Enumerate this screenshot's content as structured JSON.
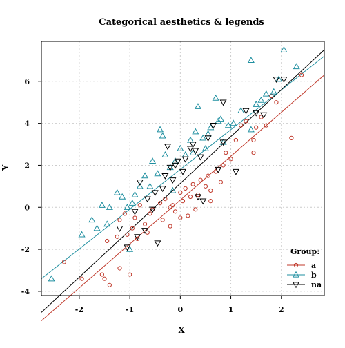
{
  "chart_data": {
    "type": "scatter",
    "title": "Categorical aesthetics & legends",
    "xlabel": "X",
    "ylabel": "Y",
    "xlim": [
      -2.75,
      2.85
    ],
    "ylim": [
      -4.2,
      7.9
    ],
    "x_ticks": [
      -2,
      -1,
      0,
      1,
      2
    ],
    "y_ticks": [
      -4,
      -2,
      0,
      2,
      4,
      6
    ],
    "grid": true,
    "legend": {
      "title": "Group:",
      "position": "bottom-right"
    },
    "series": [
      {
        "name": "a",
        "marker": "circle",
        "color": "#c0392b",
        "points": [
          [
            -2.3,
            -2.6
          ],
          [
            -1.95,
            -3.4
          ],
          [
            -1.5,
            -3.4
          ],
          [
            -1.4,
            -3.7
          ],
          [
            -1.55,
            -3.2
          ],
          [
            -1.2,
            -2.9
          ],
          [
            -1.0,
            -3.2
          ],
          [
            -1.25,
            -1.4
          ],
          [
            -1.05,
            -1.3
          ],
          [
            -0.95,
            -1.0
          ],
          [
            -0.85,
            -1.5
          ],
          [
            -1.1,
            -0.3
          ],
          [
            -1.2,
            -0.6
          ],
          [
            -0.9,
            -0.5
          ],
          [
            -0.7,
            -0.8
          ],
          [
            -0.6,
            -0.3
          ],
          [
            -0.55,
            -0.1
          ],
          [
            -0.4,
            0.2
          ],
          [
            -0.3,
            0.4
          ],
          [
            -0.2,
            0.0
          ],
          [
            -0.1,
            -0.2
          ],
          [
            0.0,
            0.7
          ],
          [
            0.05,
            0.3
          ],
          [
            0.1,
            0.9
          ],
          [
            0.2,
            0.5
          ],
          [
            0.25,
            1.1
          ],
          [
            0.35,
            0.6
          ],
          [
            0.4,
            1.3
          ],
          [
            0.5,
            1.0
          ],
          [
            0.55,
            1.5
          ],
          [
            0.6,
            0.8
          ],
          [
            0.7,
            1.7
          ],
          [
            0.8,
            1.2
          ],
          [
            0.85,
            2.0
          ],
          [
            0.9,
            2.6
          ],
          [
            1.0,
            2.3
          ],
          [
            1.1,
            3.2
          ],
          [
            1.2,
            3.9
          ],
          [
            1.3,
            4.1
          ],
          [
            1.45,
            2.6
          ],
          [
            1.45,
            3.2
          ],
          [
            1.5,
            3.8
          ],
          [
            1.6,
            4.3
          ],
          [
            1.7,
            3.9
          ],
          [
            1.8,
            5.3
          ],
          [
            1.9,
            5.0
          ],
          [
            2.2,
            3.3
          ],
          [
            2.4,
            6.3
          ],
          [
            -0.35,
            -0.6
          ],
          [
            -0.15,
            0.1
          ],
          [
            0.15,
            -0.4
          ],
          [
            -0.65,
            -1.2
          ],
          [
            -0.8,
            0.1
          ],
          [
            0.3,
            -0.1
          ],
          [
            -1.45,
            -1.6
          ],
          [
            -0.2,
            -0.9
          ],
          [
            0.0,
            -0.5
          ],
          [
            0.6,
            0.3
          ]
        ]
      },
      {
        "name": "b",
        "marker": "triangle-up",
        "color": "#1f8fa0",
        "points": [
          [
            -2.55,
            -3.4
          ],
          [
            -1.95,
            -1.3
          ],
          [
            -1.65,
            -1.0
          ],
          [
            -1.45,
            -0.8
          ],
          [
            -1.4,
            0.0
          ],
          [
            -1.25,
            0.7
          ],
          [
            -1.15,
            0.5
          ],
          [
            -1.05,
            0.0
          ],
          [
            -0.95,
            0.2
          ],
          [
            -0.9,
            0.6
          ],
          [
            -0.8,
            1.0
          ],
          [
            -0.7,
            1.5
          ],
          [
            -0.6,
            1.0
          ],
          [
            -0.55,
            2.2
          ],
          [
            -0.45,
            1.6
          ],
          [
            -0.4,
            3.7
          ],
          [
            -0.3,
            2.5
          ],
          [
            -0.2,
            1.9
          ],
          [
            -0.1,
            2.2
          ],
          [
            0.0,
            2.8
          ],
          [
            0.1,
            2.5
          ],
          [
            0.2,
            3.2
          ],
          [
            0.3,
            3.6
          ],
          [
            0.35,
            4.8
          ],
          [
            0.45,
            3.3
          ],
          [
            0.5,
            2.8
          ],
          [
            0.6,
            3.8
          ],
          [
            0.7,
            5.2
          ],
          [
            0.75,
            4.1
          ],
          [
            0.8,
            4.2
          ],
          [
            0.85,
            3.1
          ],
          [
            0.95,
            3.9
          ],
          [
            1.05,
            4.0
          ],
          [
            1.2,
            4.6
          ],
          [
            1.4,
            3.7
          ],
          [
            1.4,
            7.0
          ],
          [
            1.5,
            4.9
          ],
          [
            1.6,
            5.1
          ],
          [
            1.7,
            5.4
          ],
          [
            1.85,
            5.5
          ],
          [
            1.95,
            6.1
          ],
          [
            2.05,
            7.5
          ],
          [
            2.3,
            6.7
          ],
          [
            -1.0,
            -2.0
          ],
          [
            -1.55,
            0.1
          ],
          [
            -0.35,
            3.4
          ],
          [
            0.25,
            2.6
          ],
          [
            -1.75,
            -0.6
          ],
          [
            -0.15,
            0.8
          ],
          [
            0.55,
            3.5
          ]
        ]
      },
      {
        "name": "na",
        "marker": "triangle-down",
        "color": "#000000",
        "points": [
          [
            -1.2,
            -1.0
          ],
          [
            -1.05,
            -1.9
          ],
          [
            -0.85,
            -1.4
          ],
          [
            -0.7,
            -1.1
          ],
          [
            -0.45,
            -1.7
          ],
          [
            -0.9,
            -0.2
          ],
          [
            -0.65,
            0.4
          ],
          [
            -0.5,
            0.7
          ],
          [
            -0.35,
            0.9
          ],
          [
            -0.3,
            1.5
          ],
          [
            -0.2,
            1.9
          ],
          [
            -0.1,
            2.0
          ],
          [
            -0.05,
            2.2
          ],
          [
            0.05,
            1.7
          ],
          [
            0.1,
            2.3
          ],
          [
            0.2,
            2.8
          ],
          [
            0.25,
            3.0
          ],
          [
            0.3,
            2.7
          ],
          [
            0.35,
            0.5
          ],
          [
            0.45,
            0.3
          ],
          [
            0.55,
            3.3
          ],
          [
            0.75,
            1.8
          ],
          [
            0.85,
            3.1
          ],
          [
            0.85,
            5.0
          ],
          [
            1.1,
            1.7
          ],
          [
            1.3,
            4.6
          ],
          [
            1.5,
            4.5
          ],
          [
            1.65,
            4.4
          ],
          [
            1.9,
            6.1
          ],
          [
            2.05,
            6.1
          ],
          [
            -0.8,
            1.2
          ],
          [
            -0.15,
            1.3
          ],
          [
            0.4,
            2.4
          ],
          [
            -0.55,
            -0.1
          ],
          [
            0.65,
            3.9
          ],
          [
            -0.25,
            2.9
          ]
        ]
      }
    ],
    "fit_lines": [
      {
        "series": "a",
        "x": [
          -2.75,
          2.85
        ],
        "y": [
          -5.4,
          6.3
        ]
      },
      {
        "series": "b",
        "x": [
          -2.75,
          2.85
        ],
        "y": [
          -3.4,
          7.2
        ]
      },
      {
        "series": "na",
        "x": [
          -2.75,
          2.85
        ],
        "y": [
          -5.0,
          7.5
        ]
      }
    ]
  }
}
